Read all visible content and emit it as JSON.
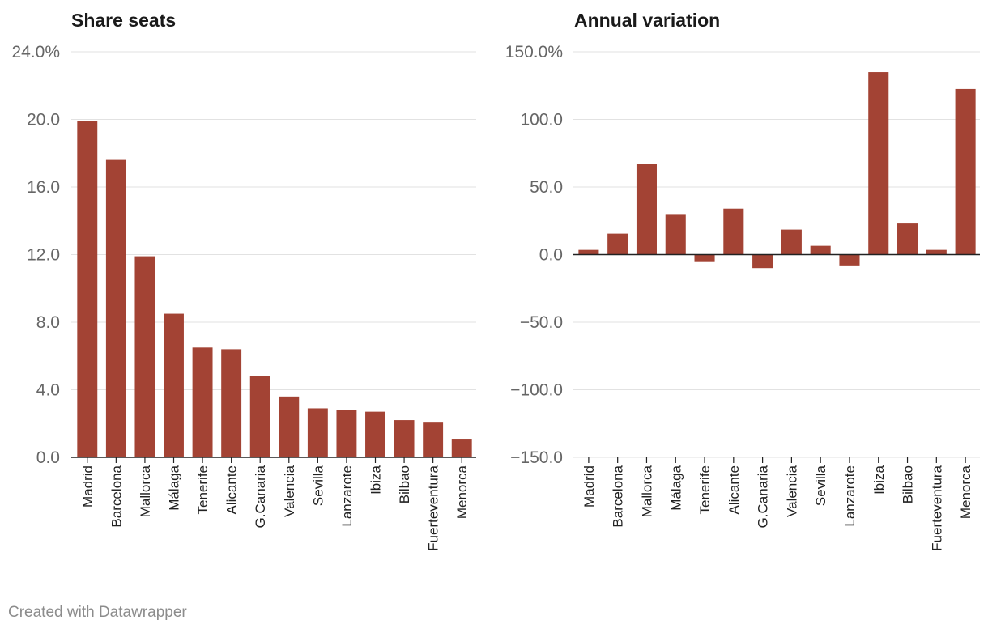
{
  "footer": "Created with Datawrapper",
  "colors": {
    "bar": "#a34334",
    "grid": "#e2e2e2",
    "axis": "#222222"
  },
  "chart_data": [
    {
      "type": "bar",
      "title": "Share seats",
      "categories": [
        "Madrid",
        "Barcelona",
        "Mallorca",
        "Málaga",
        "Tenerife",
        "Alicante",
        "G.Canaria",
        "Valencia",
        "Sevilla",
        "Lanzarote",
        "Ibiza",
        "Bilbao",
        "Fuerteventura",
        "Menorca"
      ],
      "values": [
        19.9,
        17.6,
        11.9,
        8.5,
        6.5,
        6.4,
        4.8,
        3.6,
        2.9,
        2.8,
        2.7,
        2.2,
        2.1,
        1.1
      ],
      "ylim": [
        0,
        24
      ],
      "yticks": [
        0,
        4,
        8,
        12,
        16,
        20,
        24
      ],
      "ytick_labels": [
        "0.0",
        "4.0",
        "8.0",
        "12.0",
        "16.0",
        "20.0",
        "24.0%"
      ],
      "xlabel": "",
      "ylabel": ""
    },
    {
      "type": "bar",
      "title": "Annual variation",
      "categories": [
        "Madrid",
        "Barcelona",
        "Mallorca",
        "Málaga",
        "Tenerife",
        "Alicante",
        "G.Canaria",
        "Valencia",
        "Sevilla",
        "Lanzarote",
        "Ibiza",
        "Bilbao",
        "Fuerteventura",
        "Menorca"
      ],
      "values": [
        3.5,
        15.5,
        67,
        30,
        -5.5,
        34,
        -10,
        18.5,
        6.5,
        -8,
        135,
        23,
        3.5,
        122.5
      ],
      "ylim": [
        -150,
        150
      ],
      "yticks": [
        -150,
        -100,
        -50,
        0,
        50,
        100,
        150
      ],
      "ytick_labels": [
        "−150.0",
        "−100.0",
        "−50.0",
        "0.0",
        "50.0",
        "100.0",
        "150.0%"
      ],
      "xlabel": "",
      "ylabel": ""
    }
  ]
}
